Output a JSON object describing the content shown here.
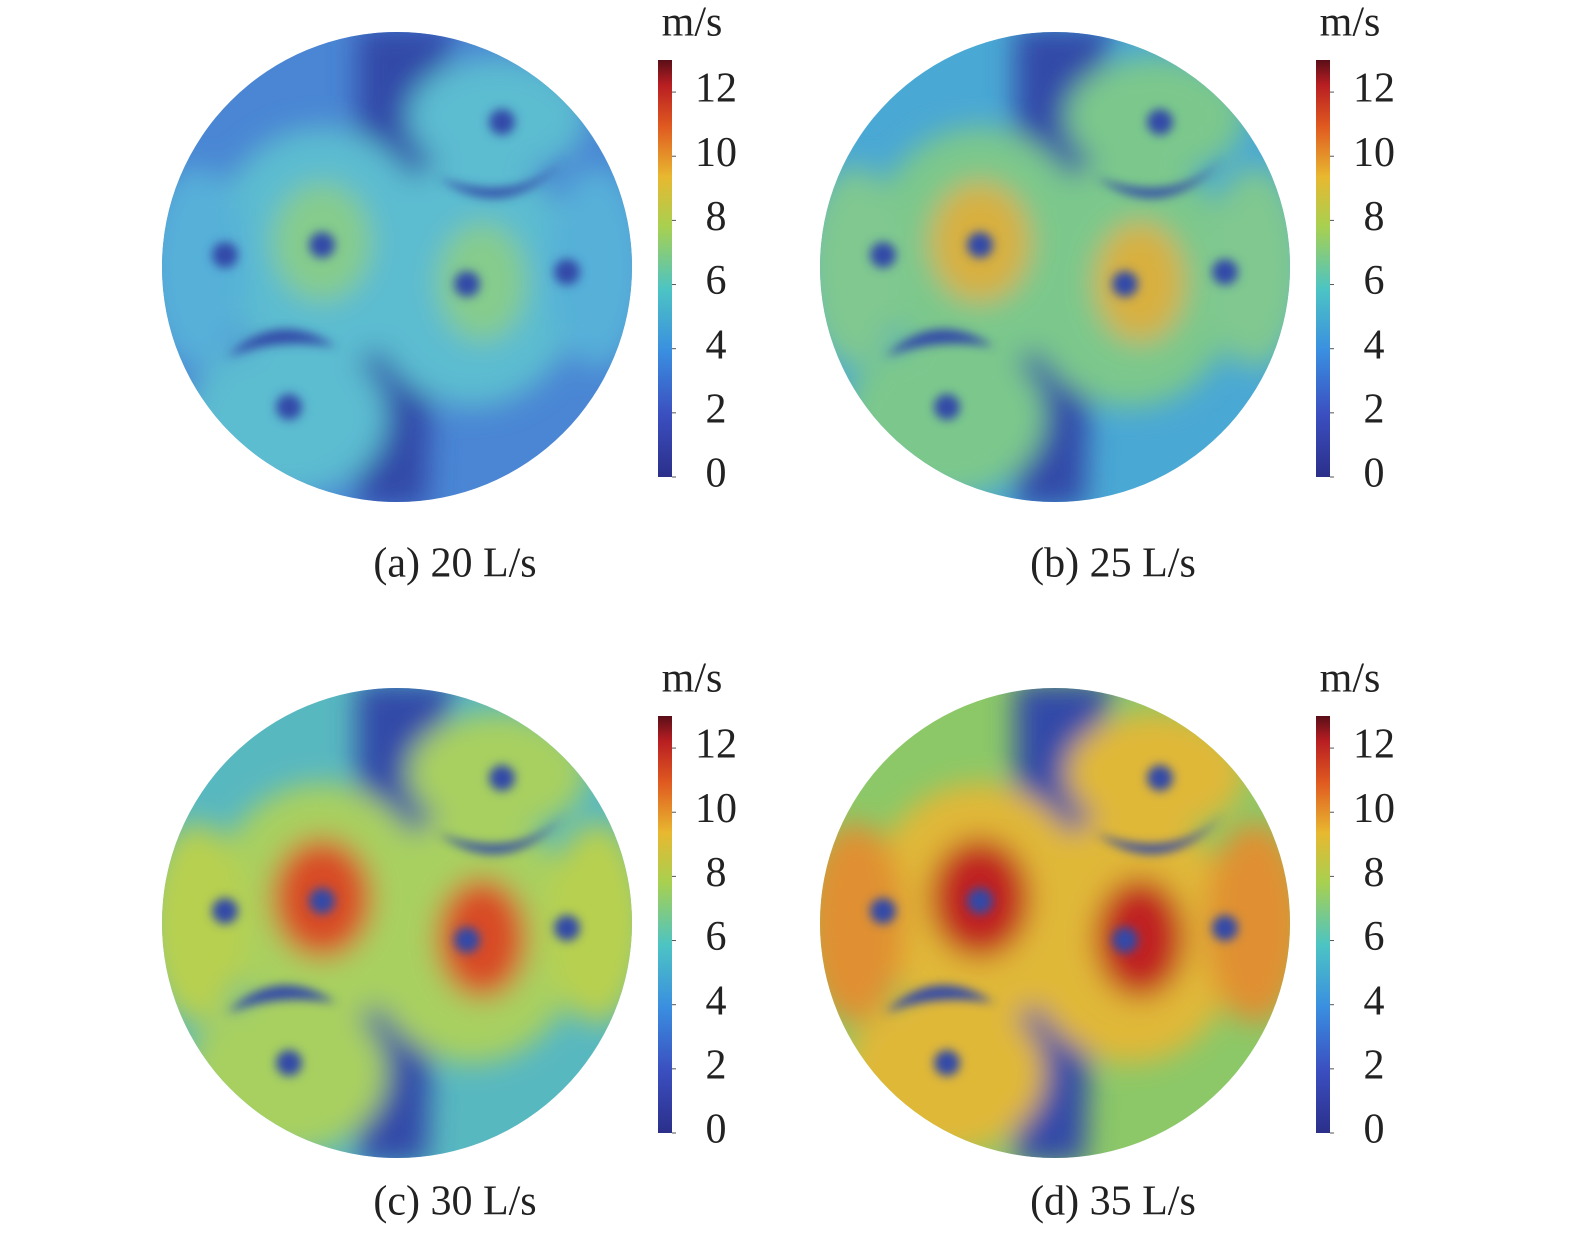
{
  "chart_data": [
    {
      "type": "contour",
      "caption": "(a) 20 L/s",
      "colorbar": {
        "label": "m/s",
        "lim": [
          0,
          13
        ],
        "ticks": [
          0,
          2,
          4,
          6,
          8,
          10,
          12
        ]
      }
    },
    {
      "type": "contour",
      "caption": "(b) 25 L/s",
      "colorbar": {
        "label": "m/s",
        "lim": [
          0,
          13
        ],
        "ticks": [
          0,
          2,
          4,
          6,
          8,
          10,
          12
        ]
      }
    },
    {
      "type": "contour",
      "caption": "(c) 30 L/s",
      "colorbar": {
        "label": "m/s",
        "lim": [
          0,
          13
        ],
        "ticks": [
          0,
          2,
          4,
          6,
          8,
          10,
          12
        ]
      }
    },
    {
      "type": "contour",
      "caption": "(d) 35 L/s",
      "colorbar": {
        "label": "m/s",
        "lim": [
          0,
          13
        ],
        "ticks": [
          0,
          2,
          4,
          6,
          8,
          10,
          12
        ]
      }
    }
  ]
}
